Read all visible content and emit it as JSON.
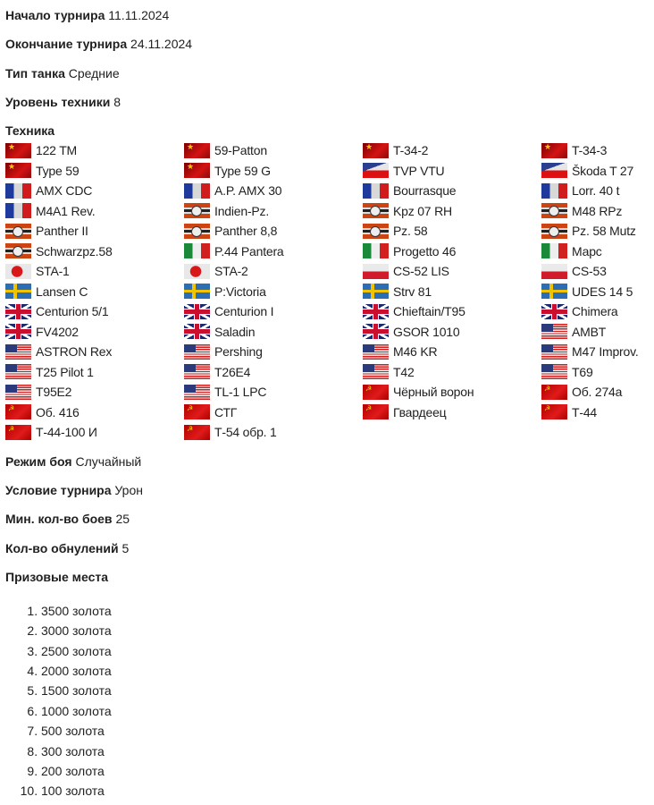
{
  "fields_top": [
    {
      "label": "Начало турнира",
      "value": "11.11.2024"
    },
    {
      "label": "Окончание турнира",
      "value": "24.11.2024"
    },
    {
      "label": "Тип танка",
      "value": "Средние"
    },
    {
      "label": "Уровень техники",
      "value": "8"
    }
  ],
  "tech_label": "Техника",
  "tanks": [
    {
      "name": "122 TM",
      "nation": "cn"
    },
    {
      "name": "59-Patton",
      "nation": "cn"
    },
    {
      "name": "T-34-2",
      "nation": "cn"
    },
    {
      "name": "T-34-3",
      "nation": "cn"
    },
    {
      "name": "Type 59",
      "nation": "cn"
    },
    {
      "name": "Type 59 G",
      "nation": "cn"
    },
    {
      "name": "TVP VTU",
      "nation": "cz"
    },
    {
      "name": "Škoda T 27",
      "nation": "cz"
    },
    {
      "name": "AMX CDC",
      "nation": "fr"
    },
    {
      "name": "A.P. AMX 30",
      "nation": "fr"
    },
    {
      "name": "Bourrasque",
      "nation": "fr"
    },
    {
      "name": "Lorr. 40 t",
      "nation": "fr"
    },
    {
      "name": "M4A1 Rev.",
      "nation": "fr"
    },
    {
      "name": "Indien-Pz.",
      "nation": "de"
    },
    {
      "name": "Kpz 07 RH",
      "nation": "de"
    },
    {
      "name": "M48 RPz",
      "nation": "de"
    },
    {
      "name": "Panther II",
      "nation": "de"
    },
    {
      "name": "Panther 8,8",
      "nation": "de"
    },
    {
      "name": "Pz. 58",
      "nation": "de"
    },
    {
      "name": "Pz. 58 Mutz",
      "nation": "de"
    },
    {
      "name": "Schwarzpz.58",
      "nation": "de"
    },
    {
      "name": "P.44 Pantera",
      "nation": "it"
    },
    {
      "name": "Progetto 46",
      "nation": "it"
    },
    {
      "name": "Марс",
      "nation": "it"
    },
    {
      "name": "STA-1",
      "nation": "jp"
    },
    {
      "name": "STA-2",
      "nation": "jp"
    },
    {
      "name": "CS-52 LIS",
      "nation": "pl"
    },
    {
      "name": "CS-53",
      "nation": "pl"
    },
    {
      "name": "Lansen C",
      "nation": "se"
    },
    {
      "name": "P:Victoria",
      "nation": "se"
    },
    {
      "name": "Strv 81",
      "nation": "se"
    },
    {
      "name": "UDES 14 5",
      "nation": "se"
    },
    {
      "name": "Centurion 5/1",
      "nation": "uk"
    },
    {
      "name": "Centurion I",
      "nation": "uk"
    },
    {
      "name": "Chieftain/T95",
      "nation": "uk"
    },
    {
      "name": "Chimera",
      "nation": "uk"
    },
    {
      "name": "FV4202",
      "nation": "uk"
    },
    {
      "name": "Saladin",
      "nation": "uk"
    },
    {
      "name": "GSOR 1010",
      "nation": "uk"
    },
    {
      "name": "AMBT",
      "nation": "us"
    },
    {
      "name": "ASTRON Rex",
      "nation": "us"
    },
    {
      "name": "Pershing",
      "nation": "us"
    },
    {
      "name": "M46 KR",
      "nation": "us"
    },
    {
      "name": "M47 Improv.",
      "nation": "us"
    },
    {
      "name": "T25 Pilot 1",
      "nation": "us"
    },
    {
      "name": "T26E4",
      "nation": "us"
    },
    {
      "name": "T42",
      "nation": "us"
    },
    {
      "name": "T69",
      "nation": "us"
    },
    {
      "name": "T95E2",
      "nation": "us"
    },
    {
      "name": "TL-1 LPC",
      "nation": "us"
    },
    {
      "name": "Чёрный ворон",
      "nation": "su"
    },
    {
      "name": "Об. 274а",
      "nation": "su"
    },
    {
      "name": "Об. 416",
      "nation": "su"
    },
    {
      "name": "СТГ",
      "nation": "su"
    },
    {
      "name": "Гвардеец",
      "nation": "su"
    },
    {
      "name": "Т-44",
      "nation": "su"
    },
    {
      "name": "Т-44-100 И",
      "nation": "su"
    },
    {
      "name": "Т-54 обр. 1",
      "nation": "su"
    }
  ],
  "fields_bottom": [
    {
      "label": "Режим боя",
      "value": "Случайный"
    },
    {
      "label": "Условие турнира",
      "value": "Урон"
    },
    {
      "label": "Мин. кол-во боев",
      "value": "25"
    },
    {
      "label": "Кол-во обнулений",
      "value": "5"
    }
  ],
  "prizes_label": "Призовые места",
  "prizes": [
    "3500 золота",
    "3000 золота",
    "2500 золота",
    "2000 золота",
    "1500 золота",
    "1000 золота",
    "500 золота",
    "300 золота",
    "200 золота",
    "100 золота"
  ]
}
